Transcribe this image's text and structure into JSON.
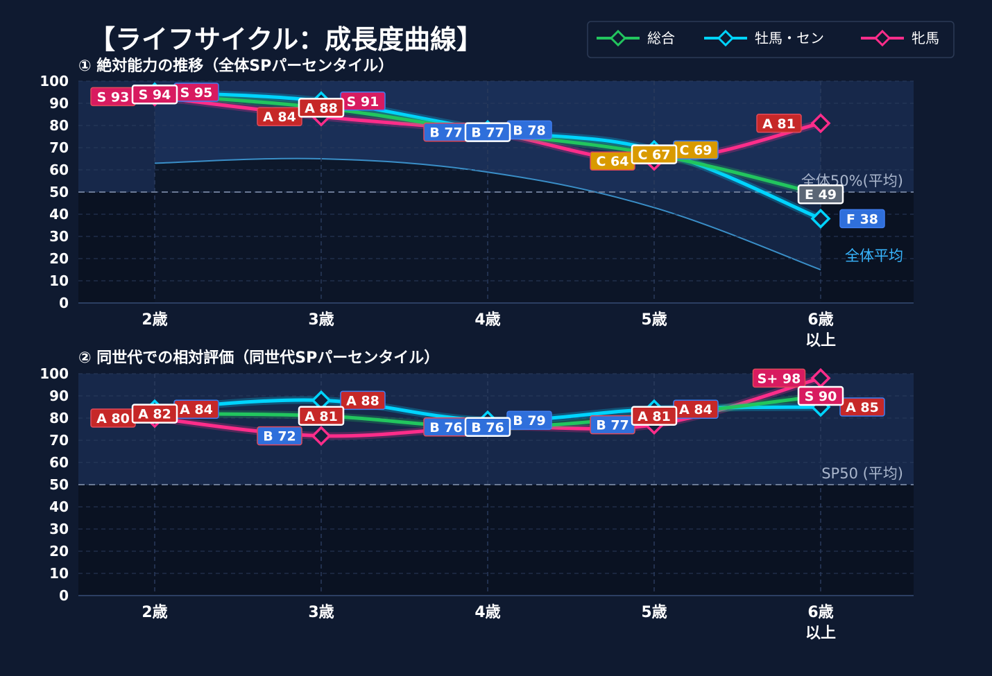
{
  "title": "【ライフサイクル：成長度曲線】",
  "legend": [
    {
      "name": "総合",
      "color": "#22c55e"
    },
    {
      "name": "牡馬・セン",
      "color": "#00d4ff"
    },
    {
      "name": "牝馬",
      "color": "#ff2d8a"
    }
  ],
  "grade_colors": {
    "S+": "#d81b60",
    "S": "#d81b60",
    "A": "#c62828",
    "B": "#2f6fdb",
    "C": "#d99a00",
    "E": "#5b6675",
    "F": "#2f6fdb"
  },
  "chart_data": [
    {
      "type": "line",
      "subtitle": "① 絶対能力の推移（全体SPパーセンタイル）",
      "categories": [
        "2歳",
        "3歳",
        "4歳",
        "5歳",
        "6歳\n以上"
      ],
      "ylim": [
        0,
        100
      ],
      "yticks": [
        0,
        10,
        20,
        30,
        40,
        50,
        60,
        70,
        80,
        90,
        100
      ],
      "grid": true,
      "series": [
        {
          "name": "総合",
          "values": [
            94,
            88,
            77,
            67,
            49
          ],
          "labels": [
            "S 94",
            "A 88",
            "B 77",
            "C 67",
            "E 49"
          ]
        },
        {
          "name": "牡馬・セン",
          "values": [
            95,
            91,
            78,
            69,
            38
          ],
          "labels": [
            "S 95",
            "S 91",
            "B 78",
            "C 69",
            "F 38"
          ]
        },
        {
          "name": "牝馬",
          "values": [
            93,
            84,
            77,
            64,
            81
          ],
          "labels": [
            "S 93",
            "A 84",
            "B 77",
            "C 64",
            "A 81"
          ]
        }
      ],
      "reference_line": {
        "value": 50,
        "label": "全体50%(平均)"
      },
      "average_curve": {
        "label": "全体平均",
        "values": [
          63,
          65,
          59,
          43,
          15
        ]
      }
    },
    {
      "type": "line",
      "subtitle": "② 同世代での相対評価（同世代SPパーセンタイル）",
      "categories": [
        "2歳",
        "3歳",
        "4歳",
        "5歳",
        "6歳\n以上"
      ],
      "ylim": [
        0,
        100
      ],
      "yticks": [
        0,
        10,
        20,
        30,
        40,
        50,
        60,
        70,
        80,
        90,
        100
      ],
      "grid": true,
      "series": [
        {
          "name": "総合",
          "values": [
            82,
            81,
            76,
            81,
            90
          ],
          "labels": [
            "A 82",
            "A 81",
            "B 76",
            "A 81",
            "S 90"
          ]
        },
        {
          "name": "牡馬・セン",
          "values": [
            84,
            88,
            79,
            84,
            85
          ],
          "labels": [
            "A 84",
            "A 88",
            "B 79",
            "A 84",
            "A 85"
          ]
        },
        {
          "name": "牝馬",
          "values": [
            80,
            72,
            76,
            77,
            98
          ],
          "labels": [
            "A 80",
            "B 72",
            "B 76",
            "B 77",
            "S+ 98"
          ]
        }
      ],
      "reference_line": {
        "value": 50,
        "label": "SP50 (平均)"
      }
    }
  ]
}
